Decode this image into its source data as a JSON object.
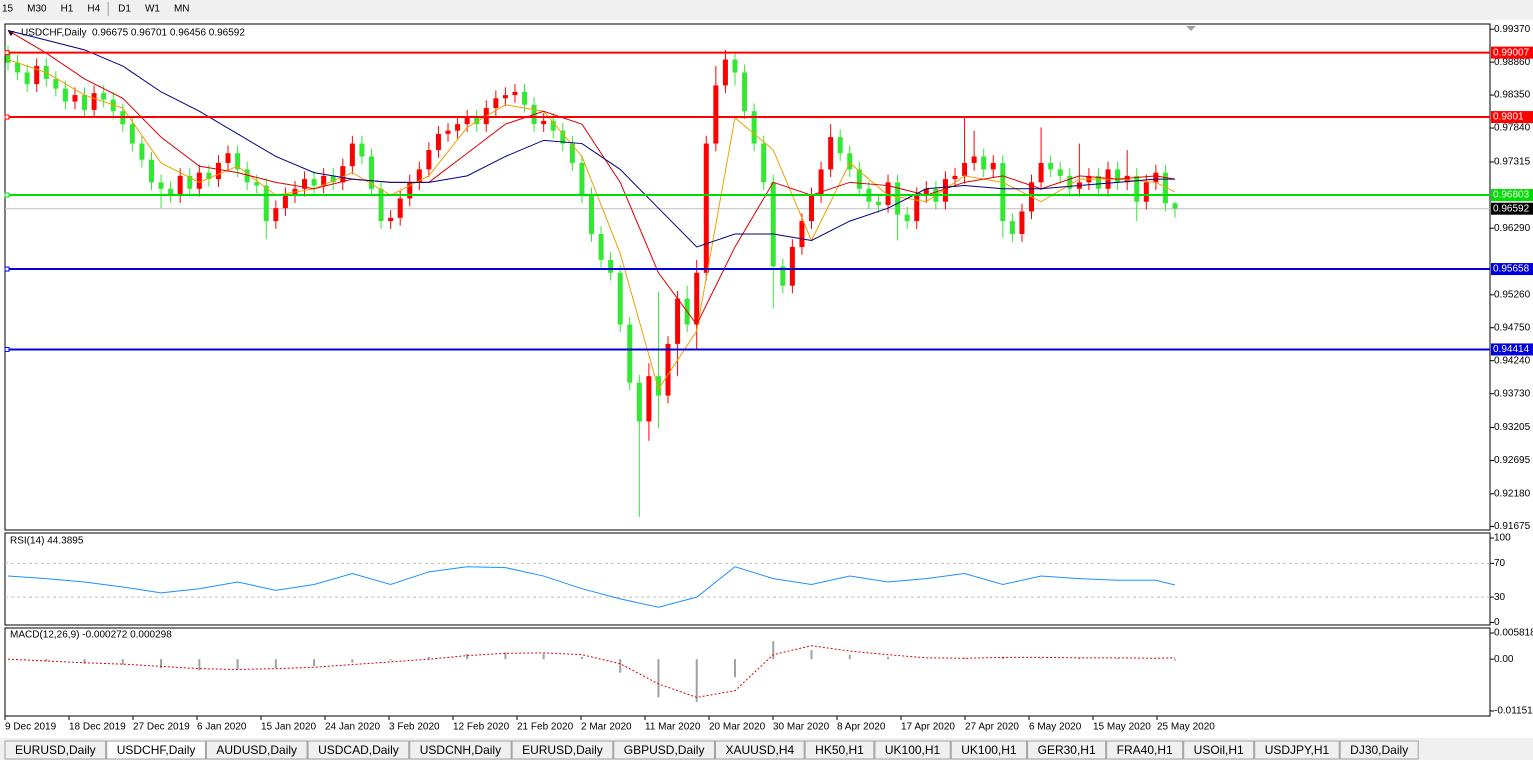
{
  "toolbar": [
    "15",
    "M30",
    "H1",
    "H4",
    "D1",
    "W1",
    "MN"
  ],
  "chart_data": {
    "type": "candlestick",
    "header": "USDCHF,Daily",
    "header_values": "0.96675 0.96701 0.96456 0.96592",
    "up_color": "#ff0000",
    "down_color": "#33e833",
    "ylim": [
      0.9162,
      0.9945
    ],
    "yticks": [
      {
        "value": 0.9937,
        "label": "0.99370"
      },
      {
        "value": 0.9886,
        "label": "0.98860"
      },
      {
        "value": 0.9835,
        "label": "0.98350"
      },
      {
        "value": 0.9784,
        "label": "0.97840"
      },
      0.97315,
      {
        "value": 0.9629,
        "label": "0.96290"
      },
      {
        "value": 0.9526,
        "label": "0.95260"
      },
      {
        "value": 0.9475,
        "label": "0.94750"
      },
      {
        "value": 0.9424,
        "label": "0.94240"
      },
      {
        "value": 0.9373,
        "label": "0.93730"
      },
      0.93205,
      0.92695,
      {
        "value": 0.9218,
        "label": "0.92180"
      },
      0.91675
    ],
    "date_labels": [
      "9 Dec 2019",
      "18 Dec 2019",
      "27 Dec 2019",
      "6 Jan 2020",
      "15 Jan 2020",
      "24 Jan 2020",
      "3 Feb 2020",
      "12 Feb 2020",
      "21 Feb 2020",
      "2 Mar 2020",
      "11 Mar 2020",
      "20 Mar 2020",
      "30 Mar 2020",
      "8 Apr 2020",
      "17 Apr 2020",
      "27 Apr 2020",
      "6 May 2020",
      "15 May 2020",
      "25 May 2020"
    ],
    "candles": [
      [
        0.99,
        0.9912,
        0.9873,
        0.9885
      ],
      [
        0.9885,
        0.9897,
        0.9858,
        0.987
      ],
      [
        0.987,
        0.9882,
        0.984,
        0.9852
      ],
      [
        0.9852,
        0.9892,
        0.984,
        0.988
      ],
      [
        0.988,
        0.9892,
        0.9848,
        0.986
      ],
      [
        0.986,
        0.9872,
        0.9833,
        0.9845
      ],
      [
        0.9845,
        0.9857,
        0.9813,
        0.9825
      ],
      [
        0.9825,
        0.9847,
        0.9813,
        0.9835
      ],
      [
        0.9835,
        0.9847,
        0.98,
        0.9812
      ],
      [
        0.9812,
        0.985,
        0.98,
        0.9838
      ],
      [
        0.9838,
        0.985,
        0.9816,
        0.9828
      ],
      [
        0.9828,
        0.984,
        0.9798,
        0.981
      ],
      [
        0.981,
        0.9822,
        0.9778,
        0.979
      ],
      [
        0.979,
        0.9802,
        0.9748,
        0.976
      ],
      [
        0.976,
        0.9772,
        0.9723,
        0.9735
      ],
      [
        0.9735,
        0.9747,
        0.9688,
        0.97
      ],
      [
        0.97,
        0.9712,
        0.966,
        0.969
      ],
      [
        0.969,
        0.9702,
        0.9668,
        0.968
      ],
      [
        0.968,
        0.9722,
        0.9668,
        0.971
      ],
      [
        0.971,
        0.9722,
        0.9678,
        0.969
      ],
      [
        0.969,
        0.9727,
        0.9678,
        0.9715
      ],
      [
        0.9715,
        0.9727,
        0.9693,
        0.9705
      ],
      [
        0.9705,
        0.9742,
        0.9693,
        0.973
      ],
      [
        0.973,
        0.9757,
        0.9718,
        0.9745
      ],
      [
        0.9745,
        0.9757,
        0.9708,
        0.972
      ],
      [
        0.972,
        0.9732,
        0.9688,
        0.97
      ],
      [
        0.97,
        0.9712,
        0.9683,
        0.9695
      ],
      [
        0.9695,
        0.9707,
        0.9612,
        0.964
      ],
      [
        0.964,
        0.9672,
        0.9628,
        0.966
      ],
      [
        0.966,
        0.9692,
        0.9648,
        0.968
      ],
      [
        0.968,
        0.9702,
        0.9668,
        0.969
      ],
      [
        0.969,
        0.9717,
        0.9678,
        0.9705
      ],
      [
        0.9705,
        0.9717,
        0.9683,
        0.9695
      ],
      [
        0.9695,
        0.9722,
        0.9683,
        0.971
      ],
      [
        0.971,
        0.9722,
        0.9688,
        0.97
      ],
      [
        0.97,
        0.9737,
        0.9688,
        0.9725
      ],
      [
        0.9725,
        0.9772,
        0.9713,
        0.976
      ],
      [
        0.976,
        0.9772,
        0.9728,
        0.974
      ],
      [
        0.974,
        0.9752,
        0.9678,
        0.969
      ],
      [
        0.969,
        0.9702,
        0.9628,
        0.964
      ],
      [
        0.964,
        0.9657,
        0.9628,
        0.9645
      ],
      [
        0.9645,
        0.9687,
        0.9633,
        0.9675
      ],
      [
        0.9675,
        0.9712,
        0.9663,
        0.97
      ],
      [
        0.97,
        0.9732,
        0.9688,
        0.972
      ],
      [
        0.972,
        0.9762,
        0.9708,
        0.975
      ],
      [
        0.975,
        0.9787,
        0.9738,
        0.9775
      ],
      [
        0.9775,
        0.9792,
        0.9763,
        0.978
      ],
      [
        0.978,
        0.9802,
        0.9768,
        0.979
      ],
      [
        0.979,
        0.9812,
        0.9778,
        0.98
      ],
      [
        0.98,
        0.9812,
        0.9778,
        0.979
      ],
      [
        0.979,
        0.9827,
        0.9778,
        0.9815
      ],
      [
        0.9815,
        0.9842,
        0.9803,
        0.983
      ],
      [
        0.983,
        0.9847,
        0.9818,
        0.9835
      ],
      [
        0.9835,
        0.9852,
        0.9823,
        0.984
      ],
      [
        0.984,
        0.9852,
        0.9808,
        0.982
      ],
      [
        0.982,
        0.9832,
        0.9778,
        0.979
      ],
      [
        0.979,
        0.9807,
        0.9778,
        0.9795
      ],
      [
        0.9795,
        0.9807,
        0.9768,
        0.978
      ],
      [
        0.978,
        0.9792,
        0.9748,
        0.976
      ],
      [
        0.976,
        0.9772,
        0.9718,
        0.973
      ],
      [
        0.973,
        0.9742,
        0.9668,
        0.968
      ],
      [
        0.968,
        0.9692,
        0.9608,
        0.962
      ],
      [
        0.962,
        0.9632,
        0.9568,
        0.958
      ],
      [
        0.958,
        0.9592,
        0.9548,
        0.956
      ],
      [
        0.956,
        0.9572,
        0.9468,
        0.948
      ],
      [
        0.948,
        0.9492,
        0.9378,
        0.939
      ],
      [
        0.939,
        0.9402,
        0.9182,
        0.933
      ],
      [
        0.933,
        0.942,
        0.93,
        0.94
      ],
      [
        0.94,
        0.953,
        0.932,
        0.937
      ],
      [
        0.937,
        0.9462,
        0.9358,
        0.945
      ],
      [
        0.945,
        0.9532,
        0.94,
        0.952
      ],
      [
        0.952,
        0.954,
        0.9468,
        0.948
      ],
      [
        0.948,
        0.958,
        0.944,
        0.956
      ],
      [
        0.956,
        0.9772,
        0.9548,
        0.976
      ],
      [
        0.976,
        0.988,
        0.9748,
        0.985
      ],
      [
        0.985,
        0.9905,
        0.9838,
        0.989
      ],
      [
        0.989,
        0.9902,
        0.985,
        0.987
      ],
      [
        0.987,
        0.9882,
        0.9798,
        0.981
      ],
      [
        0.981,
        0.9822,
        0.9748,
        0.976
      ],
      [
        0.976,
        0.9772,
        0.9688,
        0.97
      ],
      [
        0.97,
        0.9712,
        0.9505,
        0.957
      ],
      [
        0.957,
        0.9582,
        0.9528,
        0.954
      ],
      [
        0.954,
        0.9612,
        0.9528,
        0.96
      ],
      [
        0.96,
        0.9652,
        0.9588,
        0.964
      ],
      [
        0.964,
        0.9692,
        0.9628,
        0.968
      ],
      [
        0.968,
        0.9732,
        0.9668,
        0.972
      ],
      [
        0.972,
        0.979,
        0.9708,
        0.977
      ],
      [
        0.977,
        0.9782,
        0.9733,
        0.9745
      ],
      [
        0.9745,
        0.9757,
        0.9708,
        0.972
      ],
      [
        0.972,
        0.9732,
        0.9678,
        0.969
      ],
      [
        0.969,
        0.9702,
        0.9658,
        0.967
      ],
      [
        0.967,
        0.9682,
        0.9653,
        0.9665
      ],
      [
        0.9665,
        0.9712,
        0.9653,
        0.97
      ],
      [
        0.97,
        0.9712,
        0.961,
        0.965
      ],
      [
        0.965,
        0.9662,
        0.9628,
        0.964
      ],
      [
        0.964,
        0.9692,
        0.9628,
        0.968
      ],
      [
        0.968,
        0.9702,
        0.9668,
        0.969
      ],
      [
        0.969,
        0.9702,
        0.9658,
        0.967
      ],
      [
        0.967,
        0.9717,
        0.9658,
        0.9705
      ],
      [
        0.9705,
        0.9722,
        0.9693,
        0.971
      ],
      [
        0.971,
        0.98,
        0.9698,
        0.973
      ],
      [
        0.973,
        0.978,
        0.9718,
        0.974
      ],
      [
        0.974,
        0.9752,
        0.9708,
        0.972
      ],
      [
        0.972,
        0.9742,
        0.9708,
        0.973
      ],
      [
        0.973,
        0.9742,
        0.9615,
        0.964
      ],
      [
        0.964,
        0.9652,
        0.9608,
        0.962
      ],
      [
        0.962,
        0.9667,
        0.9608,
        0.9655
      ],
      [
        0.9655,
        0.9712,
        0.9643,
        0.97
      ],
      [
        0.97,
        0.9785,
        0.9688,
        0.973
      ],
      [
        0.973,
        0.9742,
        0.9708,
        0.972
      ],
      [
        0.972,
        0.9732,
        0.9698,
        0.971
      ],
      [
        0.971,
        0.9722,
        0.9678,
        0.969
      ],
      [
        0.969,
        0.976,
        0.9678,
        0.97
      ],
      [
        0.97,
        0.9722,
        0.9688,
        0.971
      ],
      [
        0.971,
        0.9722,
        0.9678,
        0.969
      ],
      [
        0.969,
        0.9732,
        0.9678,
        0.972
      ],
      [
        0.972,
        0.9732,
        0.9688,
        0.97
      ],
      [
        0.97,
        0.975,
        0.9688,
        0.971
      ],
      [
        0.971,
        0.9722,
        0.964,
        0.967
      ],
      [
        0.967,
        0.9712,
        0.9658,
        0.97
      ],
      [
        0.97,
        0.9727,
        0.9688,
        0.9715
      ],
      [
        0.9715,
        0.9727,
        0.9655,
        0.96675
      ],
      [
        0.96675,
        0.96701,
        0.96456,
        0.96592
      ]
    ],
    "overlays": {
      "x": [
        0,
        4,
        8,
        12,
        16,
        20,
        24,
        28,
        32,
        36,
        40,
        44,
        48,
        52,
        56,
        60,
        64,
        68,
        72,
        76,
        80,
        84,
        88,
        92,
        96,
        100,
        104,
        108,
        112,
        116,
        120,
        122
      ],
      "series": [
        {
          "color": "#f0a000",
          "values": [
            0.989,
            0.987,
            0.9835,
            0.9815,
            0.973,
            0.97,
            0.9725,
            0.968,
            0.969,
            0.9715,
            0.968,
            0.971,
            0.9785,
            0.982,
            0.981,
            0.974,
            0.959,
            0.938,
            0.947,
            0.98,
            0.975,
            0.961,
            0.973,
            0.968,
            0.967,
            0.971,
            0.97,
            0.967,
            0.9705,
            0.9705,
            0.97,
            0.9685
          ]
        },
        {
          "color": "#e00000",
          "values": [
            0.9935,
            0.99,
            0.986,
            0.983,
            0.977,
            0.9725,
            0.9715,
            0.97,
            0.969,
            0.9705,
            0.97,
            0.97,
            0.9745,
            0.979,
            0.981,
            0.979,
            0.97,
            0.956,
            0.948,
            0.96,
            0.97,
            0.968,
            0.97,
            0.9695,
            0.968,
            0.97,
            0.971,
            0.969,
            0.971,
            0.9705,
            0.971,
            0.9705
          ]
        },
        {
          "color": "#000080",
          "values": [
            0.9935,
            0.992,
            0.9905,
            0.988,
            0.984,
            0.981,
            0.9775,
            0.974,
            0.9715,
            0.9705,
            0.97,
            0.97,
            0.971,
            0.974,
            0.9765,
            0.976,
            0.972,
            0.966,
            0.96,
            0.962,
            0.962,
            0.961,
            0.964,
            0.966,
            0.969,
            0.9695,
            0.969,
            0.969,
            0.9695,
            0.97,
            0.9705,
            0.9705
          ]
        }
      ]
    },
    "levels": [
      {
        "value": 0.99007,
        "color": "#ff0000"
      },
      {
        "value": 0.9801,
        "color": "#ff0000"
      },
      {
        "value": 0.96803,
        "color": "#00dd00"
      },
      {
        "value": 0.95658,
        "color": "#0000dd"
      },
      {
        "value": 0.94414,
        "color": "#0000dd"
      }
    ],
    "current_price": 0.96592,
    "rsi": {
      "title": "RSI(14) 44.3895",
      "color": "#1e90ff",
      "ylim": [
        -3,
        106
      ],
      "yticks": [
        100,
        70,
        30,
        0
      ],
      "levels": [
        70,
        30
      ],
      "values": [
        55,
        52,
        48,
        42,
        35,
        40,
        48,
        38,
        45,
        58,
        45,
        60,
        66,
        65,
        55,
        40,
        28,
        18,
        30,
        66,
        52,
        45,
        55,
        48,
        52,
        58,
        45,
        55,
        52,
        50,
        50,
        44.3895
      ]
    },
    "macd": {
      "title": "MACD(12,26,9) -0.000272 0.000298",
      "hist_color": "#a0a0a0",
      "signal_color": "#e00000",
      "ylim": [
        -0.01263,
        0.00693
      ],
      "yticks": [
        0.005818,
        {
          "value": 0,
          "label": "0.00"
        },
        -0.011514
      ],
      "histogram": [
        0,
        -0.0005,
        -0.001,
        -0.0012,
        -0.002,
        -0.0025,
        -0.0022,
        -0.002,
        -0.0015,
        -0.0008,
        -0.0003,
        0.0005,
        0.0012,
        0.0015,
        0.0012,
        0.0005,
        -0.003,
        -0.0085,
        -0.0095,
        -0.004,
        0.004,
        0.002,
        0.001,
        0.0005,
        0,
        0.0003,
        0.0005,
        0.0002,
        0.0003,
        0.0002,
        0.0001,
        -0.000272
      ],
      "signal": [
        0,
        -0.0004,
        -0.0008,
        -0.0011,
        -0.0016,
        -0.0021,
        -0.0023,
        -0.0021,
        -0.0018,
        -0.0012,
        -0.0006,
        0,
        0.0008,
        0.0013,
        0.0014,
        0.001,
        -0.001,
        -0.0055,
        -0.0085,
        -0.007,
        0.001,
        0.003,
        0.0018,
        0.001,
        0.0003,
        0.0002,
        0.0004,
        0.0004,
        0.0003,
        0.0003,
        0.0002,
        0.000298
      ]
    }
  },
  "tabs": [
    "EURUSD,Daily",
    "USDCHF,Daily",
    "AUDUSD,Daily",
    "USDCAD,Daily",
    "USDCNH,Daily",
    "EURUSD,Daily",
    "GBPUSD,Daily",
    "XAUUSD,H4",
    "HK50,H1",
    "UK100,H1",
    "UK100,H1",
    "GER30,H1",
    "FRA40,H1",
    "USOil,H1",
    "USDJPY,H1",
    "DJ30,Daily"
  ],
  "active_tab": 1
}
